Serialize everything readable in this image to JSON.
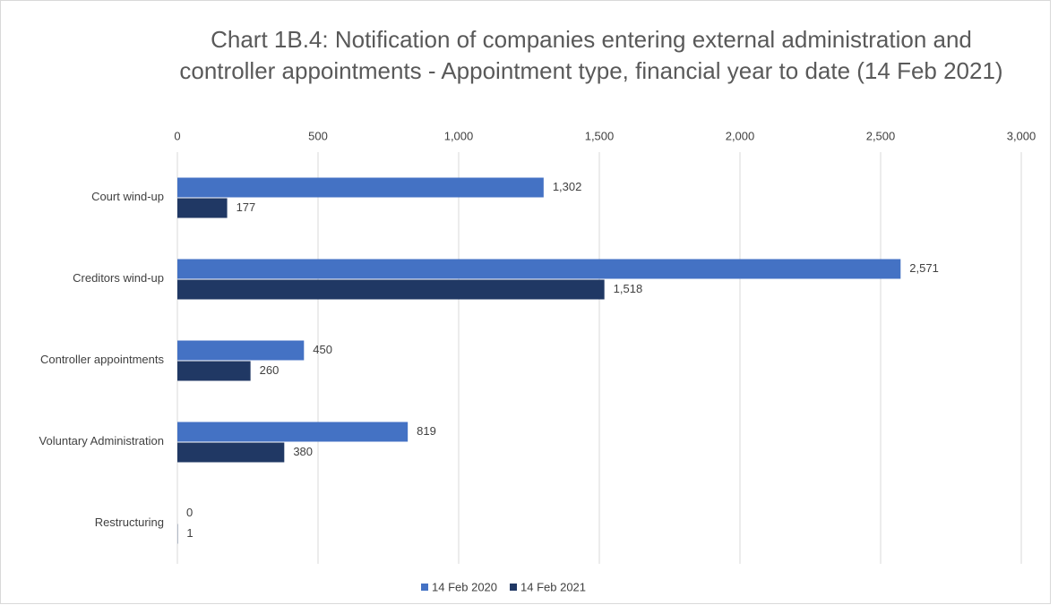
{
  "chart_data": {
    "type": "barh",
    "title": "Chart 1B.4: Notification of companies entering external administration and controller appointments - Appointment type, financial year to date (14 Feb 2021)",
    "categories": [
      "Court wind-up",
      "Creditors wind-up",
      "Controller appointments",
      "Voluntary Administration",
      "Restructuring"
    ],
    "series": [
      {
        "name": "14 Feb 2020",
        "color": "#4472c4",
        "values": [
          1302,
          2571,
          450,
          819,
          0
        ],
        "value_labels": [
          "1,302",
          "2,571",
          "450",
          "819",
          "0"
        ]
      },
      {
        "name": "14 Feb 2021",
        "color": "#203864",
        "values": [
          177,
          1518,
          260,
          380,
          1
        ],
        "value_labels": [
          "177",
          "1,518",
          "260",
          "380",
          "1"
        ]
      }
    ],
    "xlim": [
      0,
      3000
    ],
    "xticks": [
      0,
      500,
      {
        "value": 1000,
        "label": "1,000"
      },
      {
        "value": 1500,
        "label": "1,500"
      },
      {
        "value": 2000,
        "label": "2,000"
      },
      {
        "value": 2500,
        "label": "2,500"
      },
      {
        "value": 3000,
        "label": "3,000"
      }
    ],
    "grid": true,
    "legend": "bottom"
  }
}
